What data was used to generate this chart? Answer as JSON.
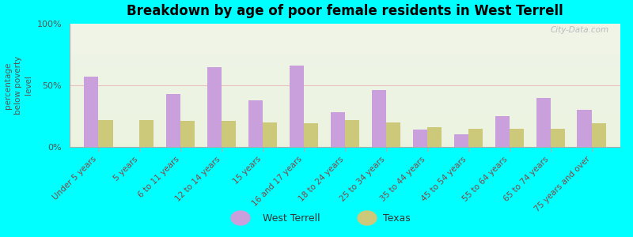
{
  "title": "Breakdown by age of poor female residents in West Terrell",
  "ylabel": "percentage\nbelow poverty\nlevel",
  "categories": [
    "Under 5 years",
    "5 years",
    "6 to 11 years",
    "12 to 14 years",
    "15 years",
    "16 and 17 years",
    "18 to 24 years",
    "25 to 34 years",
    "35 to 44 years",
    "45 to 54 years",
    "55 to 64 years",
    "65 to 74 years",
    "75 years and over"
  ],
  "west_terrell": [
    57,
    0,
    43,
    65,
    38,
    66,
    28,
    46,
    14,
    10,
    25,
    40,
    30
  ],
  "texas": [
    22,
    22,
    21,
    21,
    20,
    19,
    22,
    20,
    16,
    15,
    15,
    15,
    19
  ],
  "west_terrell_color": "#c9a0dc",
  "texas_color": "#ccc97a",
  "background_color": "#00ffff",
  "ylim": [
    0,
    100
  ],
  "ytick_labels": [
    "0%",
    "50%",
    "100%"
  ],
  "watermark": "City-Data.com",
  "bar_width": 0.35
}
